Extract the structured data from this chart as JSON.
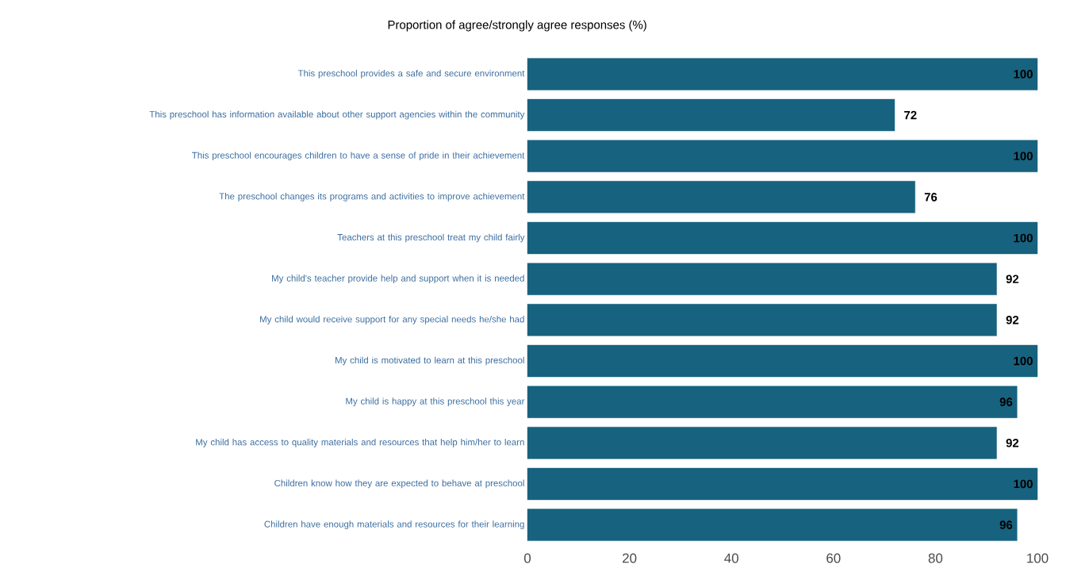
{
  "chart_data": {
    "type": "bar",
    "orientation": "horizontal",
    "title": "Proportion of agree/strongly agree responses (%)",
    "categories": [
      "This preschool provides a safe and secure environment",
      "This preschool has information available about other support agencies within the community",
      "This preschool encourages children to have a sense of pride in their achievement",
      "The preschool changes its programs and activities to improve achievement",
      "Teachers at this preschool treat my child fairly",
      "My child's teacher provide help and support when it is needed",
      "My child would receive support for any special needs he/she had",
      "My child is motivated to learn at this preschool",
      "My child is happy at this preschool this year",
      "My child has access to quality materials and resources that help him/her to learn",
      "Children know how they are expected to behave at preschool",
      "Children have enough materials and resources for their learning"
    ],
    "values": [
      100,
      72,
      100,
      76,
      100,
      92,
      92,
      100,
      96,
      92,
      100,
      96
    ],
    "color": "#17627f",
    "data_labels": true,
    "xlim": [
      0,
      100
    ],
    "xticks": [
      0,
      20,
      40,
      60,
      80,
      100
    ]
  }
}
